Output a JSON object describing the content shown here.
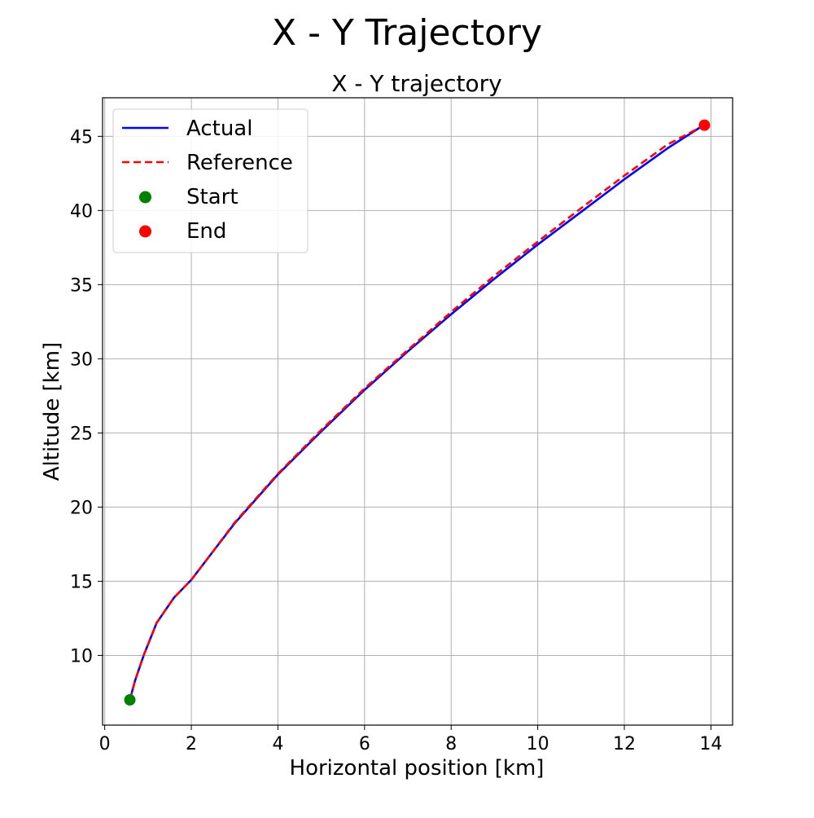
{
  "figure": {
    "suptitle": "X - Y Trajectory"
  },
  "chart_data": {
    "type": "line",
    "title": "X - Y trajectory",
    "xlabel": "Horizontal position [km]",
    "ylabel": "Altitude [km]",
    "xlim": [
      -0.05,
      14.5
    ],
    "ylim": [
      5.3,
      47.6
    ],
    "xticks": [
      0,
      2,
      4,
      6,
      8,
      10,
      12,
      14
    ],
    "yticks": [
      10,
      15,
      20,
      25,
      30,
      35,
      40,
      45
    ],
    "grid": true,
    "legend_position": "upper-left",
    "series": [
      {
        "name": "Actual",
        "style": "solid",
        "color": "#0000ff",
        "x": [
          0.58,
          0.7,
          0.9,
          1.2,
          1.6,
          2.0,
          2.5,
          3.0,
          4.0,
          5.0,
          6.0,
          7.0,
          8.0,
          9.0,
          10.0,
          11.0,
          12.0,
          13.0,
          13.8
        ],
        "y": [
          7.0,
          8.3,
          10.0,
          12.2,
          13.9,
          15.1,
          17.0,
          18.9,
          22.2,
          25.1,
          27.9,
          30.5,
          33.0,
          35.4,
          37.7,
          39.9,
          42.1,
          44.2,
          45.7
        ]
      },
      {
        "name": "Reference",
        "style": "dashed",
        "color": "#ff0000",
        "x": [
          0.58,
          0.7,
          0.9,
          1.2,
          1.6,
          2.0,
          2.5,
          3.0,
          4.0,
          5.0,
          6.0,
          7.0,
          8.0,
          9.0,
          10.0,
          11.0,
          12.0,
          13.0,
          13.85
        ],
        "y": [
          7.0,
          8.3,
          10.0,
          12.2,
          13.9,
          15.1,
          17.0,
          18.95,
          22.25,
          25.2,
          28.0,
          30.6,
          33.15,
          35.6,
          37.9,
          40.15,
          42.35,
          44.45,
          45.75
        ]
      }
    ],
    "markers": [
      {
        "name": "Start",
        "color": "#008000",
        "x": 0.58,
        "y": 7.0
      },
      {
        "name": "End",
        "color": "#ff0000",
        "x": 13.85,
        "y": 45.75
      }
    ],
    "legend": [
      {
        "label": "Actual",
        "kind": "line-solid",
        "color": "#0000ff"
      },
      {
        "label": "Reference",
        "kind": "line-dashed",
        "color": "#ff0000"
      },
      {
        "label": "Start",
        "kind": "marker",
        "color": "#008000"
      },
      {
        "label": "End",
        "kind": "marker",
        "color": "#ff0000"
      }
    ]
  }
}
